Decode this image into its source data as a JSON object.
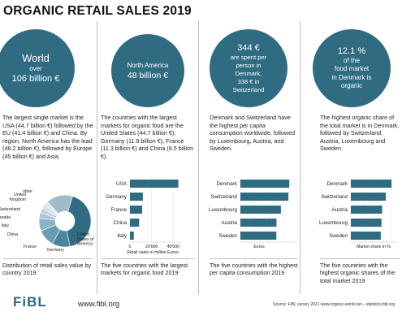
{
  "title": "ORGANIC RETAIL SALES 2019",
  "colors": {
    "accent": "#2f6c82",
    "bar": "#2f6c82"
  },
  "panels": [
    {
      "circle_lines": [
        "World",
        "over",
        "106 billion €"
      ],
      "desc": "The largest single market is the USA (44.7 billion €) followed by the EU (41.4 billion €) and China. By region, North America has the lead (48.2 billion €), followed by Europe (45 billion €) and Asia.",
      "caption": "Distribution of retail sales value by country 2019"
    },
    {
      "circle_lines": [
        "North America",
        "48 billion €"
      ],
      "desc": "The countries with the largest markets for organic food are the United States (44.7 billion €), Germany (11.9 billion €), France (11.3 billion €) and China (8.5 billion €).",
      "caption": "The five countries with the largest markets for organic food 2019"
    },
    {
      "circle_lines": [
        "344 €",
        "are spent per",
        "person in",
        "Denmark,",
        "338 € in",
        "Switzerland"
      ],
      "desc": "Denmark and Switzerland have the highest per capita consumption worldwide, followed by Luxembourg, Austria, and Sweden.",
      "caption": "The five countries with the highest per capita consumption 2019"
    },
    {
      "circle_lines": [
        "12.1 %",
        "of the",
        "food market",
        "in Denmark is",
        "organic"
      ],
      "desc": "The highest organic share of the total market is in Denmark, followed by Switzerland, Austria, Luxembourg and Sweden.",
      "caption": "The five countries with the highest organic shares of the total market 2019"
    }
  ],
  "chart_data": [
    {
      "type": "pie",
      "categories": [
        "United States of America",
        "Germany",
        "France",
        "China",
        "Italy",
        "Canada",
        "Switzerland",
        "United Kingdom",
        "other"
      ],
      "labels": [
        "United States of America",
        "Germany",
        "France",
        "China",
        "Italy",
        "Canada",
        "Switzerland",
        "United Kingdom",
        "other"
      ],
      "values": [
        44.7,
        11.9,
        11.3,
        8.5,
        3.6,
        3.3,
        2.7,
        2.6,
        17.5
      ],
      "donut": true
    },
    {
      "type": "bar",
      "orientation": "horizontal",
      "categories": [
        "USA",
        "Germany",
        "France",
        "China",
        "Italy"
      ],
      "values": [
        44.7,
        11.9,
        11.3,
        8.5,
        3.6
      ],
      "xlabel": "Retail sales in million Euros",
      "xlim": [
        0,
        48000
      ],
      "ticks": [
        "0",
        "20'000",
        "40'000"
      ]
    },
    {
      "type": "bar",
      "orientation": "horizontal",
      "categories": [
        "Denmark",
        "Switzerland",
        "Luxembourg",
        "Austria",
        "Sweden"
      ],
      "values": [
        344,
        338,
        285,
        254,
        253
      ],
      "xlabel": "Euros",
      "xlim": [
        0,
        400
      ]
    },
    {
      "type": "bar",
      "orientation": "horizontal",
      "categories": [
        "Denmark",
        "Switzerland",
        "Austria",
        "Luxembourg",
        "Sweden"
      ],
      "values": [
        12.1,
        10.4,
        9.3,
        9.1,
        8.9
      ],
      "xlabel": "Market share in %",
      "xlim": [
        0,
        14
      ]
    }
  ],
  "footer": {
    "logo": "FiBL",
    "url": "www.fibl.org",
    "source": "Source: FiBL survey 2021 www.organic-world.net – statistics.fibl.org"
  }
}
